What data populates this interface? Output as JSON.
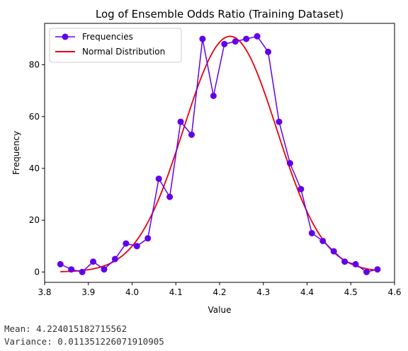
{
  "chart_data": {
    "type": "line",
    "title": "Log of Ensemble Odds Ratio (Training Dataset)",
    "xlabel": "Value",
    "ylabel": "Frequency",
    "xlim": [
      3.8,
      4.6
    ],
    "ylim": [
      -4,
      96
    ],
    "xticks": [
      3.8,
      3.9,
      4.0,
      4.1,
      4.2,
      4.3,
      4.4,
      4.5,
      4.6
    ],
    "xtick_labels": [
      "3.8",
      "3.9",
      "4.0",
      "4.1",
      "4.2",
      "4.3",
      "4.4",
      "4.5",
      "4.6"
    ],
    "yticks": [
      0,
      20,
      40,
      60,
      80
    ],
    "ytick_labels": [
      "0",
      "20",
      "40",
      "60",
      "80"
    ],
    "grid": false,
    "legend_position": "top-left",
    "series": [
      {
        "name": "Frequencies",
        "color": "#6200ea",
        "marker": "circle",
        "x": [
          3.836,
          3.861,
          3.886,
          3.911,
          3.936,
          3.961,
          3.986,
          4.011,
          4.036,
          4.061,
          4.086,
          4.111,
          4.136,
          4.161,
          4.186,
          4.211,
          4.236,
          4.261,
          4.286,
          4.311,
          4.336,
          4.361,
          4.386,
          4.411,
          4.436,
          4.461,
          4.486,
          4.511,
          4.536,
          4.561
        ],
        "y": [
          3,
          1,
          0,
          4,
          1,
          5,
          11,
          10,
          13,
          36,
          29,
          58,
          53,
          90,
          68,
          88,
          89,
          90,
          91,
          85,
          58,
          42,
          32,
          15,
          12,
          8,
          4,
          3,
          0,
          1
        ]
      },
      {
        "name": "Normal Distribution",
        "color": "#e8000b",
        "marker": "none",
        "mean": 4.224015182715562,
        "variance": 0.011351226071910905,
        "peak": 91,
        "x_range": [
          3.836,
          4.561
        ]
      }
    ]
  },
  "stats": {
    "mean_text": "Mean: 4.224015182715562",
    "variance_text": "Variance: 0.011351226071910905"
  }
}
